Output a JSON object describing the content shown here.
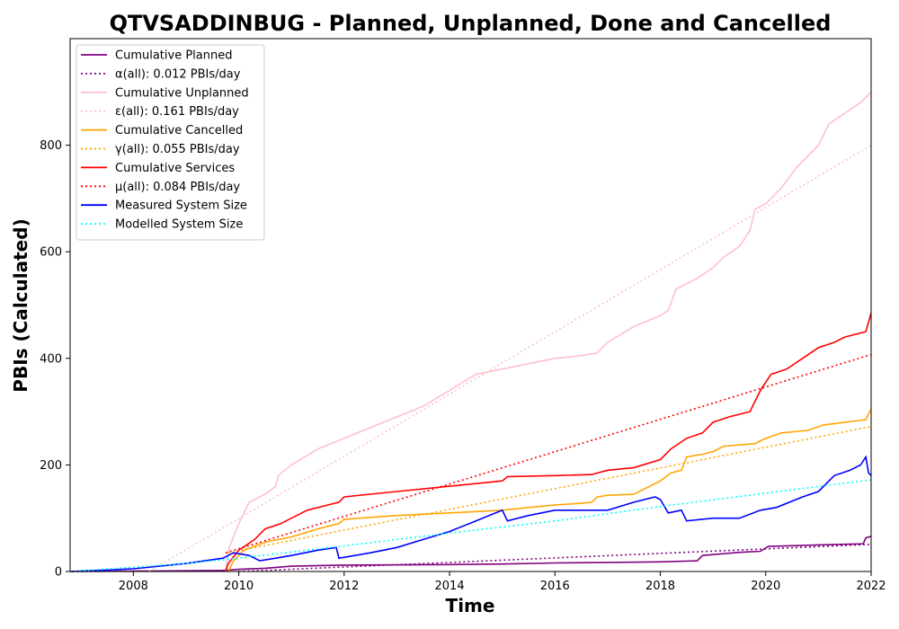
{
  "chart_data": {
    "type": "line",
    "title": "QTVSADDINBUG - Planned, Unplanned, Done  and Cancelled",
    "xlabel": "Time",
    "ylabel": "PBIs (Calculated)",
    "xlim": [
      2006.8,
      2022.0
    ],
    "ylim": [
      0,
      1000
    ],
    "x_ticks": [
      2008,
      2010,
      2012,
      2014,
      2016,
      2018,
      2020,
      2022
    ],
    "y_ticks": [
      0,
      200,
      400,
      600,
      800
    ],
    "legend_position": "top-left",
    "grid": false,
    "series": [
      {
        "name": "Cumulative Planned",
        "color": "#800080",
        "style": "solid",
        "points": [
          [
            2006.8,
            0
          ],
          [
            2008.5,
            1
          ],
          [
            2009.7,
            2
          ],
          [
            2010.0,
            4
          ],
          [
            2010.5,
            6
          ],
          [
            2011.0,
            10
          ],
          [
            2012.0,
            12
          ],
          [
            2014.0,
            13
          ],
          [
            2015.0,
            14
          ],
          [
            2016.0,
            16
          ],
          [
            2017.0,
            17
          ],
          [
            2018.0,
            18
          ],
          [
            2018.7,
            20
          ],
          [
            2018.8,
            30
          ],
          [
            2019.5,
            36
          ],
          [
            2019.9,
            38
          ],
          [
            2020.05,
            47
          ],
          [
            2021.0,
            50
          ],
          [
            2021.85,
            52
          ],
          [
            2021.9,
            63
          ],
          [
            2022.0,
            66
          ]
        ]
      },
      {
        "name": "α(all): 0.012 PBIs/day",
        "color": "#800080",
        "style": "dotted",
        "points": [
          [
            2010.0,
            0
          ],
          [
            2022.0,
            51
          ]
        ]
      },
      {
        "name": "Cumulative Unplanned",
        "color": "#ffc0cb",
        "style": "solid",
        "points": [
          [
            2009.75,
            0
          ],
          [
            2009.8,
            40
          ],
          [
            2010.0,
            90
          ],
          [
            2010.2,
            130
          ],
          [
            2010.5,
            145
          ],
          [
            2010.7,
            160
          ],
          [
            2010.75,
            180
          ],
          [
            2011.0,
            200
          ],
          [
            2011.5,
            230
          ],
          [
            2012.0,
            250
          ],
          [
            2012.5,
            270
          ],
          [
            2013.0,
            290
          ],
          [
            2013.5,
            310
          ],
          [
            2014.0,
            340
          ],
          [
            2014.5,
            370
          ],
          [
            2015.0,
            380
          ],
          [
            2015.5,
            390
          ],
          [
            2016.0,
            400
          ],
          [
            2016.5,
            405
          ],
          [
            2016.8,
            410
          ],
          [
            2017.0,
            430
          ],
          [
            2017.5,
            460
          ],
          [
            2018.0,
            480
          ],
          [
            2018.15,
            490
          ],
          [
            2018.3,
            530
          ],
          [
            2018.7,
            550
          ],
          [
            2019.0,
            570
          ],
          [
            2019.2,
            590
          ],
          [
            2019.5,
            610
          ],
          [
            2019.7,
            640
          ],
          [
            2019.8,
            680
          ],
          [
            2020.0,
            690
          ],
          [
            2020.3,
            720
          ],
          [
            2020.6,
            760
          ],
          [
            2021.0,
            800
          ],
          [
            2021.2,
            840
          ],
          [
            2021.5,
            860
          ],
          [
            2021.8,
            880
          ],
          [
            2022.0,
            900
          ]
        ]
      },
      {
        "name": "ε(all): 0.161 PBIs/day",
        "color": "#ffc0cb",
        "style": "dotted",
        "points": [
          [
            2008.3,
            0
          ],
          [
            2022.0,
            800
          ]
        ]
      },
      {
        "name": "Cumulative Cancelled",
        "color": "#ffa500",
        "style": "solid",
        "points": [
          [
            2009.8,
            0
          ],
          [
            2009.9,
            20
          ],
          [
            2010.1,
            40
          ],
          [
            2010.5,
            55
          ],
          [
            2011.0,
            65
          ],
          [
            2011.5,
            80
          ],
          [
            2011.9,
            90
          ],
          [
            2012.0,
            98
          ],
          [
            2013.0,
            105
          ],
          [
            2014.0,
            110
          ],
          [
            2015.0,
            115
          ],
          [
            2015.5,
            120
          ],
          [
            2016.0,
            125
          ],
          [
            2016.5,
            128
          ],
          [
            2016.7,
            130
          ],
          [
            2016.8,
            140
          ],
          [
            2017.0,
            143
          ],
          [
            2017.5,
            145
          ],
          [
            2017.9,
            165
          ],
          [
            2018.0,
            170
          ],
          [
            2018.2,
            185
          ],
          [
            2018.4,
            190
          ],
          [
            2018.5,
            215
          ],
          [
            2018.8,
            220
          ],
          [
            2019.0,
            225
          ],
          [
            2019.2,
            235
          ],
          [
            2019.8,
            240
          ],
          [
            2020.0,
            250
          ],
          [
            2020.3,
            260
          ],
          [
            2020.8,
            265
          ],
          [
            2021.1,
            275
          ],
          [
            2021.9,
            285
          ],
          [
            2022.0,
            305
          ]
        ]
      },
      {
        "name": "γ(all): 0.055 PBIs/day",
        "color": "#ffa500",
        "style": "dotted",
        "points": [
          [
            2009.8,
            35
          ],
          [
            2022.0,
            272
          ]
        ]
      },
      {
        "name": "Cumulative Services",
        "color": "#ff0000",
        "style": "solid",
        "points": [
          [
            2009.75,
            0
          ],
          [
            2009.8,
            15
          ],
          [
            2010.0,
            40
          ],
          [
            2010.3,
            60
          ],
          [
            2010.5,
            80
          ],
          [
            2010.8,
            90
          ],
          [
            2011.0,
            100
          ],
          [
            2011.3,
            115
          ],
          [
            2011.7,
            125
          ],
          [
            2011.9,
            130
          ],
          [
            2012.0,
            140
          ],
          [
            2013.0,
            150
          ],
          [
            2014.0,
            160
          ],
          [
            2015.0,
            170
          ],
          [
            2015.1,
            178
          ],
          [
            2016.0,
            180
          ],
          [
            2016.7,
            182
          ],
          [
            2017.0,
            190
          ],
          [
            2017.5,
            195
          ],
          [
            2018.0,
            210
          ],
          [
            2018.2,
            230
          ],
          [
            2018.5,
            250
          ],
          [
            2018.8,
            260
          ],
          [
            2019.0,
            280
          ],
          [
            2019.3,
            290
          ],
          [
            2019.7,
            300
          ],
          [
            2019.9,
            340
          ],
          [
            2020.1,
            370
          ],
          [
            2020.4,
            380
          ],
          [
            2020.7,
            400
          ],
          [
            2021.0,
            420
          ],
          [
            2021.3,
            430
          ],
          [
            2021.5,
            440
          ],
          [
            2021.9,
            450
          ],
          [
            2022.0,
            485
          ]
        ]
      },
      {
        "name": "μ(all): 0.084 PBIs/day",
        "color": "#ff0000",
        "style": "dotted",
        "points": [
          [
            2009.75,
            35
          ],
          [
            2022.0,
            407
          ]
        ]
      },
      {
        "name": "Measured System Size",
        "color": "#0000ff",
        "style": "solid",
        "points": [
          [
            2006.8,
            0
          ],
          [
            2008.0,
            5
          ],
          [
            2009.0,
            15
          ],
          [
            2009.7,
            25
          ],
          [
            2009.9,
            35
          ],
          [
            2010.2,
            30
          ],
          [
            2010.4,
            20
          ],
          [
            2010.7,
            25
          ],
          [
            2011.0,
            30
          ],
          [
            2011.5,
            40
          ],
          [
            2011.85,
            45
          ],
          [
            2011.9,
            25
          ],
          [
            2012.5,
            35
          ],
          [
            2013.0,
            45
          ],
          [
            2013.5,
            60
          ],
          [
            2014.0,
            75
          ],
          [
            2014.5,
            95
          ],
          [
            2015.0,
            115
          ],
          [
            2015.1,
            95
          ],
          [
            2015.5,
            105
          ],
          [
            2016.0,
            115
          ],
          [
            2016.5,
            115
          ],
          [
            2017.0,
            115
          ],
          [
            2017.5,
            130
          ],
          [
            2017.9,
            140
          ],
          [
            2018.0,
            135
          ],
          [
            2018.15,
            110
          ],
          [
            2018.4,
            115
          ],
          [
            2018.5,
            95
          ],
          [
            2019.0,
            100
          ],
          [
            2019.5,
            100
          ],
          [
            2019.9,
            115
          ],
          [
            2020.2,
            120
          ],
          [
            2020.7,
            140
          ],
          [
            2021.0,
            150
          ],
          [
            2021.3,
            180
          ],
          [
            2021.6,
            190
          ],
          [
            2021.8,
            200
          ],
          [
            2021.9,
            215
          ],
          [
            2021.95,
            185
          ],
          [
            2022.0,
            180
          ]
        ]
      },
      {
        "name": "Modelled System Size",
        "color": "#00ffff",
        "style": "dotted",
        "points": [
          [
            2006.8,
            0
          ],
          [
            2009.0,
            15
          ],
          [
            2010.0,
            25
          ],
          [
            2012.0,
            48
          ],
          [
            2014.0,
            72
          ],
          [
            2016.0,
            95
          ],
          [
            2018.0,
            122
          ],
          [
            2020.0,
            147
          ],
          [
            2022.0,
            172
          ]
        ]
      }
    ]
  }
}
